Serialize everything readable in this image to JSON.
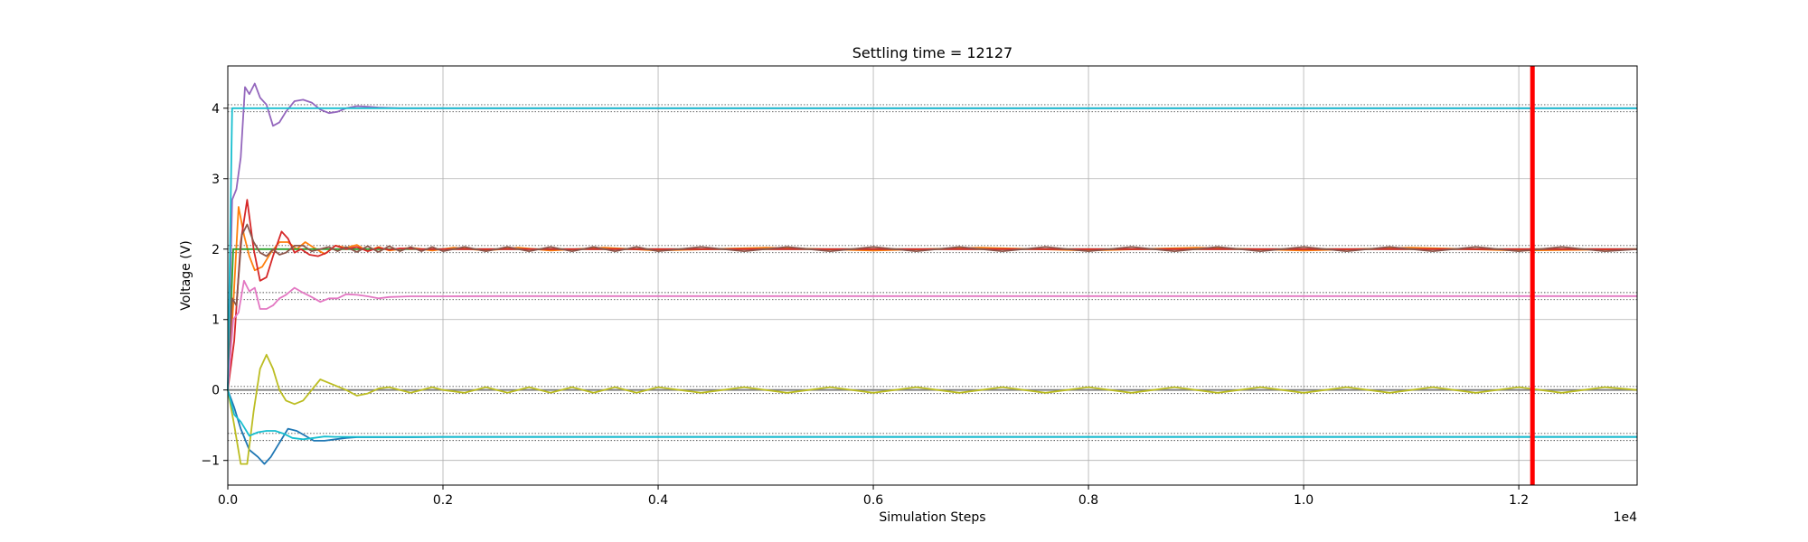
{
  "chart_data": {
    "type": "line",
    "title": "Settling time = 12127",
    "xlabel": "Simulation Steps",
    "ylabel": "Voltage (V)",
    "x_offset_label": "1e4",
    "xlim": [
      0,
      13100
    ],
    "ylim": [
      -1.35,
      4.6
    ],
    "grid": true,
    "x_ticks": [
      0,
      2000,
      4000,
      6000,
      8000,
      10000,
      12000
    ],
    "x_tick_labels": [
      "0.0",
      "0.2",
      "0.4",
      "0.6",
      "0.8",
      "1.0",
      "1.2"
    ],
    "y_ticks": [
      -1,
      0,
      1,
      2,
      3,
      4
    ],
    "y_tick_labels": [
      "−1",
      "0",
      "1",
      "2",
      "3",
      "4"
    ],
    "settling_time": 12127,
    "settling_line_color": "#ff0000",
    "target_levels": [
      4,
      2,
      1.333,
      0,
      -0.667
    ],
    "tolerance_band": 0.05,
    "series": [
      {
        "color": "#1f77b4",
        "x": [
          0,
          60,
          120,
          200,
          280,
          340,
          400,
          480,
          560,
          640,
          720,
          800,
          900,
          1000,
          1100,
          1200,
          1400,
          1700,
          2000,
          3000,
          5000,
          8000,
          13100
        ],
        "y": [
          0,
          -0.25,
          -0.55,
          -0.85,
          -0.95,
          -1.05,
          -0.95,
          -0.75,
          -0.55,
          -0.58,
          -0.65,
          -0.72,
          -0.72,
          -0.7,
          -0.68,
          -0.67,
          -0.67,
          -0.67,
          -0.667,
          -0.667,
          -0.667,
          -0.667,
          -0.667
        ]
      },
      {
        "color": "#ff7f0e",
        "x": [
          0,
          50,
          100,
          150,
          200,
          250,
          320,
          400,
          480,
          560,
          640,
          720,
          800,
          900,
          1000,
          1100,
          1200,
          1300,
          1400,
          1500,
          1700,
          1900,
          2100,
          2400,
          2700,
          3000,
          3500,
          4000,
          5000,
          6000,
          7000,
          8000,
          9000,
          10000,
          11000,
          12000,
          13100
        ],
        "y": [
          0,
          1.2,
          2.6,
          2.2,
          1.9,
          1.7,
          1.75,
          1.95,
          2.1,
          2.1,
          2.0,
          2.1,
          2.02,
          1.93,
          2.05,
          2.02,
          2.06,
          1.97,
          2.03,
          1.98,
          2.02,
          1.98,
          2.02,
          1.98,
          2.02,
          1.98,
          2.02,
          1.98,
          2.02,
          1.98,
          2.02,
          1.98,
          2.02,
          1.98,
          2.02,
          1.98,
          2.0
        ]
      },
      {
        "color": "#2ca02c",
        "x": [
          0,
          50,
          100,
          13100
        ],
        "y": [
          0,
          2.0,
          2.0,
          2.0
        ]
      },
      {
        "color": "#d62728",
        "x": [
          0,
          60,
          120,
          180,
          240,
          300,
          360,
          420,
          500,
          560,
          620,
          680,
          760,
          840,
          920,
          1000,
          1100,
          1200,
          1300,
          1400,
          1500,
          1600,
          1800,
          2000,
          2300,
          2600,
          3000,
          4000,
          5000,
          6000,
          8000,
          10000,
          13100
        ],
        "y": [
          0,
          0.7,
          2.1,
          2.7,
          2.0,
          1.55,
          1.6,
          1.9,
          2.25,
          2.15,
          1.95,
          2.0,
          1.92,
          1.9,
          1.95,
          2.05,
          2.0,
          2.03,
          1.97,
          2.02,
          1.99,
          2.01,
          2.0,
          2.0,
          2.0,
          2.0,
          2.0,
          2.0,
          2.0,
          2.0,
          2.0,
          2.0,
          2.0
        ]
      },
      {
        "color": "#9467bd",
        "x": [
          0,
          40,
          80,
          120,
          160,
          200,
          250,
          300,
          360,
          420,
          480,
          540,
          620,
          700,
          780,
          860,
          940,
          1020,
          1100,
          1200,
          1300,
          1400,
          1600,
          1800,
          2000,
          2500,
          3000,
          4000,
          6000,
          8000,
          10000,
          13100
        ],
        "y": [
          0,
          2.7,
          2.85,
          3.3,
          4.3,
          4.2,
          4.35,
          4.15,
          4.05,
          3.75,
          3.8,
          3.95,
          4.1,
          4.12,
          4.08,
          3.98,
          3.93,
          3.95,
          4.0,
          4.03,
          4.02,
          4.01,
          4.0,
          4.0,
          4.0,
          4.0,
          4.0,
          4.0,
          4.0,
          4.0,
          4.0,
          4.0
        ]
      },
      {
        "color": "#8c564b",
        "x": [
          0,
          40,
          80,
          130,
          180,
          240,
          300,
          360,
          420,
          480,
          540,
          620,
          700,
          780,
          860,
          940,
          1020,
          1100,
          1200,
          1300,
          1400,
          1500,
          1600,
          1700,
          1800,
          1900,
          2000,
          2200,
          2400,
          2600,
          2800,
          3000,
          3200,
          3400,
          3600,
          3800,
          4000,
          4400,
          4800,
          5200,
          5600,
          6000,
          6400,
          6800,
          7200,
          7600,
          8000,
          8400,
          8800,
          9200,
          9600,
          10000,
          10400,
          10800,
          11200,
          11600,
          12000,
          12400,
          12800,
          13100
        ],
        "y": [
          0,
          1.3,
          1.2,
          2.2,
          2.35,
          2.1,
          1.95,
          1.9,
          2.0,
          1.92,
          1.95,
          2.05,
          2.05,
          1.97,
          2.0,
          2.03,
          1.97,
          2.03,
          1.96,
          2.04,
          1.96,
          2.04,
          1.97,
          2.03,
          1.97,
          2.03,
          1.97,
          2.03,
          1.97,
          2.03,
          1.97,
          2.03,
          1.97,
          2.03,
          1.97,
          2.03,
          1.97,
          2.03,
          1.97,
          2.03,
          1.97,
          2.03,
          1.97,
          2.03,
          1.97,
          2.03,
          1.97,
          2.03,
          1.97,
          2.03,
          1.97,
          2.03,
          1.97,
          2.03,
          1.97,
          2.03,
          1.97,
          2.03,
          1.97,
          2.0
        ]
      },
      {
        "color": "#e377c2",
        "x": [
          0,
          50,
          100,
          150,
          200,
          250,
          300,
          360,
          420,
          480,
          540,
          620,
          700,
          780,
          860,
          940,
          1020,
          1100,
          1200,
          1300,
          1400,
          1500,
          1700,
          2000,
          2500,
          3000,
          4000,
          6000,
          8000,
          10000,
          13100
        ],
        "y": [
          0,
          1.0,
          1.1,
          1.55,
          1.4,
          1.45,
          1.15,
          1.15,
          1.2,
          1.3,
          1.35,
          1.45,
          1.38,
          1.32,
          1.25,
          1.3,
          1.3,
          1.36,
          1.35,
          1.33,
          1.3,
          1.32,
          1.33,
          1.33,
          1.333,
          1.333,
          1.333,
          1.333,
          1.333,
          1.333,
          1.333
        ]
      },
      {
        "color": "#7f7f7f",
        "x": [
          0,
          13100
        ],
        "y": [
          0,
          0
        ]
      },
      {
        "color": "#bcbd22",
        "x": [
          0,
          60,
          120,
          180,
          240,
          300,
          360,
          420,
          480,
          540,
          620,
          700,
          780,
          860,
          940,
          1020,
          1100,
          1200,
          1300,
          1400,
          1500,
          1600,
          1700,
          1800,
          1900,
          2000,
          2200,
          2400,
          2600,
          2800,
          3000,
          3200,
          3400,
          3600,
          3800,
          4000,
          4400,
          4800,
          5200,
          5600,
          6000,
          6400,
          6800,
          7200,
          7600,
          8000,
          8400,
          8800,
          9200,
          9600,
          10000,
          10400,
          10800,
          11200,
          11600,
          12000,
          12400,
          12800,
          13100
        ],
        "y": [
          0,
          -0.5,
          -1.05,
          -1.05,
          -0.3,
          0.3,
          0.5,
          0.3,
          0.0,
          -0.15,
          -0.2,
          -0.15,
          0.0,
          0.15,
          0.1,
          0.05,
          0.0,
          -0.08,
          -0.05,
          0.02,
          0.04,
          0.0,
          -0.04,
          0.0,
          0.04,
          0.0,
          -0.04,
          0.04,
          -0.04,
          0.04,
          -0.04,
          0.04,
          -0.04,
          0.04,
          -0.04,
          0.04,
          -0.04,
          0.04,
          -0.04,
          0.04,
          -0.04,
          0.04,
          -0.04,
          0.04,
          -0.04,
          0.04,
          -0.04,
          0.04,
          -0.04,
          0.04,
          -0.04,
          0.04,
          -0.04,
          0.04,
          -0.04,
          0.04,
          -0.04,
          0.04,
          0.0
        ]
      },
      {
        "color": "#17becf",
        "x": [
          0,
          40,
          80,
          130,
          13100
        ],
        "y": [
          0,
          4.0,
          4.0,
          4.0,
          4.0
        ]
      },
      {
        "color": "#17becf",
        "x": [
          0,
          60,
          120,
          200,
          280,
          360,
          440,
          520,
          600,
          700,
          800,
          900,
          1000,
          1200,
          1500,
          2000,
          13100
        ],
        "y": [
          0,
          -0.35,
          -0.45,
          -0.65,
          -0.6,
          -0.58,
          -0.58,
          -0.62,
          -0.68,
          -0.7,
          -0.68,
          -0.66,
          -0.665,
          -0.667,
          -0.667,
          -0.667,
          -0.667
        ]
      }
    ]
  }
}
